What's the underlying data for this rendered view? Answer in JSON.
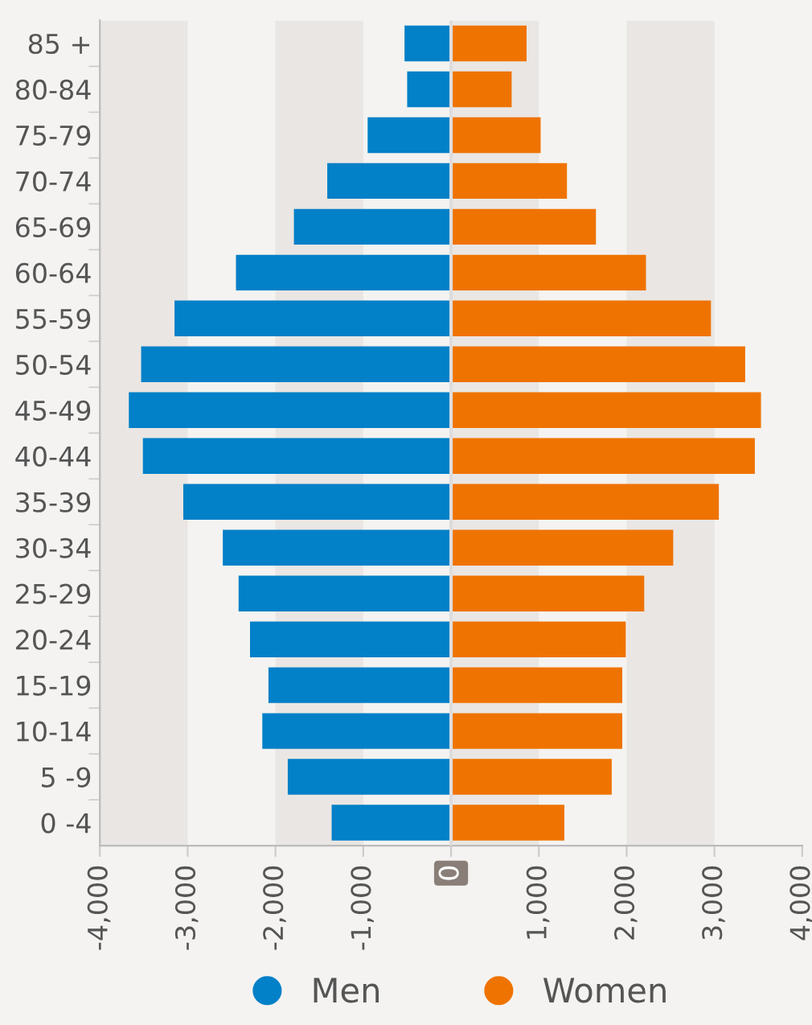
{
  "chart_data": {
    "type": "bar",
    "orientation": "horizontal",
    "stacked": true,
    "categories": [
      "85 +",
      "80-84",
      "75-79",
      "70-74",
      "65-69",
      "60-64",
      "55-59",
      "50-54",
      "45-49",
      "40-44",
      "35-39",
      "30-34",
      "25-29",
      "20-24",
      "15-19",
      "10-14",
      "5 -9",
      "0 -4"
    ],
    "series": [
      {
        "name": "Men",
        "color": "#0280c8",
        "values": [
          -530,
          -500,
          -950,
          -1410,
          -1790,
          -2450,
          -3150,
          -3530,
          -3670,
          -3510,
          -3050,
          -2600,
          -2420,
          -2290,
          -2080,
          -2150,
          -1860,
          -1360
        ]
      },
      {
        "name": "Women",
        "color": "#ef7301",
        "values": [
          860,
          690,
          1020,
          1320,
          1650,
          2220,
          2960,
          3350,
          3530,
          3460,
          3050,
          2530,
          2200,
          1990,
          1950,
          1950,
          1830,
          1290
        ]
      }
    ],
    "xlim": [
      -4000,
      4000
    ],
    "xticks": [
      {
        "value": -4000,
        "label": "-4,000"
      },
      {
        "value": -3000,
        "label": "-3,000"
      },
      {
        "value": -2000,
        "label": "-2,000"
      },
      {
        "value": -1000,
        "label": "-1,000"
      },
      0,
      {
        "value": 1000,
        "label": "1,000"
      },
      {
        "value": 2000,
        "label": "2,000"
      },
      {
        "value": 3000,
        "label": "3,000"
      },
      {
        "value": 4000,
        "label": "4,000"
      }
    ],
    "grid": "x",
    "legend": "bottom",
    "marker": "circle"
  }
}
